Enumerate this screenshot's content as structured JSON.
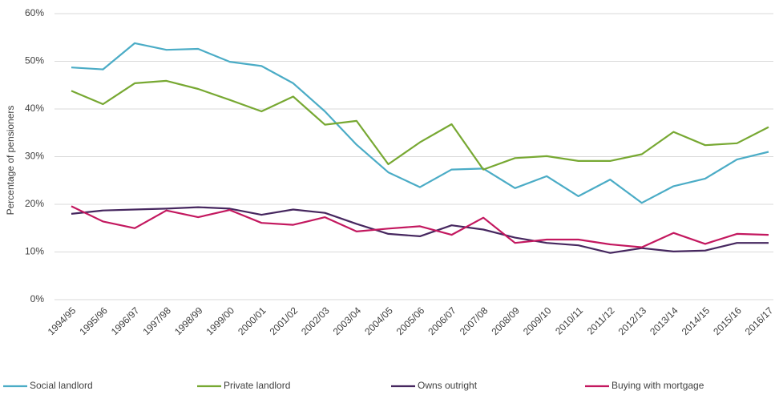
{
  "chart_data": {
    "type": "line",
    "y_label": "Percentage of pensioners",
    "categories": [
      "1994/95",
      "1995/96",
      "1996/97",
      "1997/98",
      "1998/99",
      "1999/00",
      "2000/01",
      "2001/02",
      "2002/03",
      "2003/04",
      "2004/05",
      "2005/06",
      "2006/07",
      "2007/08",
      "2008/09",
      "2009/10",
      "2010/11",
      "2011/12",
      "2012/13",
      "2013/14",
      "2014/15",
      "2015/16",
      "2016/17"
    ],
    "series": [
      {
        "name": "Social landlord",
        "color": "#4bacc6",
        "values": [
          48.7,
          48.3,
          53.8,
          52.4,
          52.6,
          49.9,
          49.0,
          45.4,
          39.5,
          32.5,
          26.7,
          23.6,
          27.3,
          27.5,
          23.4,
          25.9,
          21.7,
          25.2,
          20.3,
          23.8,
          25.4,
          29.4,
          31.0
        ]
      },
      {
        "name": "Private landlord",
        "color": "#77a832",
        "values": [
          43.8,
          41.0,
          45.4,
          45.9,
          44.2,
          41.9,
          39.5,
          42.6,
          36.7,
          37.5,
          28.4,
          33.0,
          36.8,
          27.3,
          29.7,
          30.1,
          29.1,
          29.1,
          30.5,
          35.2,
          32.4,
          32.8,
          36.2
        ]
      },
      {
        "name": "Owns outright",
        "color": "#46275f",
        "values": [
          18.0,
          18.7,
          18.9,
          19.1,
          19.4,
          19.1,
          17.8,
          18.9,
          18.2,
          15.9,
          13.8,
          13.3,
          15.6,
          14.7,
          13.0,
          11.9,
          11.4,
          9.8,
          10.8,
          10.1,
          10.3,
          11.9,
          11.9
        ]
      },
      {
        "name": "Buying with mortgage",
        "color": "#c3185f",
        "values": [
          19.6,
          16.4,
          15.0,
          18.7,
          17.3,
          18.8,
          16.1,
          15.7,
          17.3,
          14.3,
          14.9,
          15.4,
          13.6,
          17.2,
          11.9,
          12.6,
          12.6,
          11.6,
          11.0,
          14.0,
          11.7,
          13.8,
          13.6
        ]
      }
    ],
    "ylim": [
      0,
      60
    ],
    "yticks": [
      {
        "value": 0,
        "label": "0%"
      },
      {
        "value": 10,
        "label": "10%"
      },
      {
        "value": 20,
        "label": "20%"
      },
      {
        "value": 30,
        "label": "30%"
      },
      {
        "value": 40,
        "label": "40%"
      },
      {
        "value": 50,
        "label": "50%"
      },
      {
        "value": 60,
        "label": "60%"
      }
    ],
    "grid": true,
    "legend": "bottom"
  }
}
